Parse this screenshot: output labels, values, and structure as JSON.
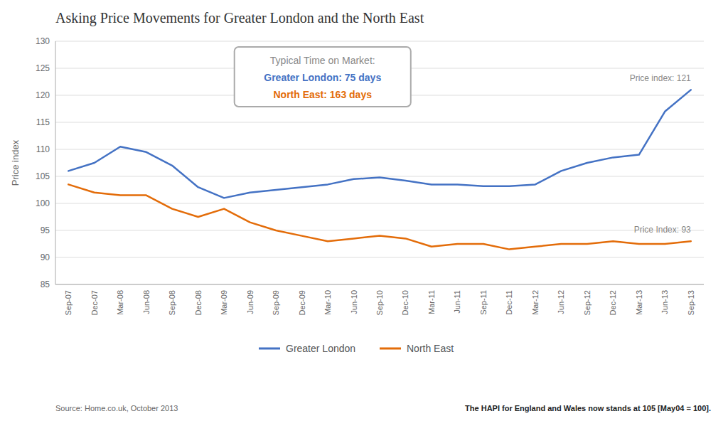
{
  "chart_data": {
    "type": "line",
    "title": "Asking Price Movements for Greater London and the North East",
    "y_label": "Price index",
    "categories": [
      "Sep-07",
      "Dec-07",
      "Mar-08",
      "Jun-08",
      "Sep-08",
      "Dec-08",
      "Mar-09",
      "Jun-09",
      "Sep-09",
      "Dec-09",
      "Mar-10",
      "Jun-10",
      "Sep-10",
      "Dec-10",
      "Mar-11",
      "Jun-11",
      "Sep-11",
      "Dec-11",
      "Mar-12",
      "Jun-12",
      "Sep-12",
      "Dec-12",
      "Mar-13",
      "Jun-13",
      "Sep-13"
    ],
    "series": [
      {
        "name": "Greater London",
        "color": "#4472C4",
        "values": [
          106,
          107.5,
          110.5,
          109.5,
          107,
          103,
          101,
          102,
          102.5,
          103,
          103.5,
          104.5,
          104.8,
          104.2,
          103.5,
          103.5,
          103.2,
          103.2,
          103.5,
          106,
          107.5,
          108.5,
          109,
          117,
          121
        ]
      },
      {
        "name": "North East",
        "color": "#E36C09",
        "values": [
          103.5,
          102,
          101.5,
          101.5,
          99,
          97.5,
          99,
          96.5,
          95,
          94,
          93,
          93.5,
          94,
          93.5,
          92,
          92.5,
          92.5,
          91.5,
          92,
          92.5,
          92.5,
          93,
          92.5,
          92.5,
          93
        ]
      }
    ],
    "ylim": [
      85,
      130
    ],
    "yticks": [
      85,
      90,
      95,
      100,
      105,
      110,
      115,
      120,
      125,
      130
    ],
    "grid": true,
    "legend": "bottom",
    "annotations": [
      "Price index: 121",
      "Price Index: 93"
    ],
    "annotation_box": [
      "Typical Time on Market:",
      "Greater London: 75 days",
      "North East: 163 days"
    ],
    "source": "Source: Home.co.uk, October 2013",
    "footer": "The HAPI for England and Wales now stands at 105 [May04 = 100]."
  }
}
